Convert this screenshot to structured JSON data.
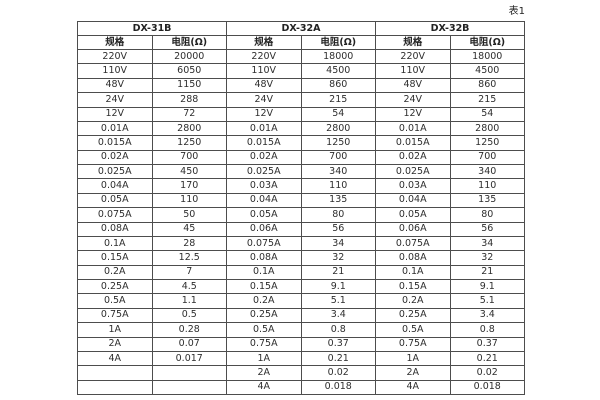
{
  "page": {
    "caption": "表1"
  },
  "table": {
    "groups": [
      {
        "name": "DX-31B"
      },
      {
        "name": "DX-32A"
      },
      {
        "name": "DX-32B"
      }
    ],
    "col_headers": {
      "spec": "规格",
      "resistance": "电阻(Ω)"
    },
    "rows": [
      [
        "220V",
        "20000",
        "220V",
        "18000",
        "220V",
        "18000"
      ],
      [
        "110V",
        "6050",
        "110V",
        "4500",
        "110V",
        "4500"
      ],
      [
        "48V",
        "1150",
        "48V",
        "860",
        "48V",
        "860"
      ],
      [
        "24V",
        "288",
        "24V",
        "215",
        "24V",
        "215"
      ],
      [
        "12V",
        "72",
        "12V",
        "54",
        "12V",
        "54"
      ],
      [
        "0.01A",
        "2800",
        "0.01A",
        "2800",
        "0.01A",
        "2800"
      ],
      [
        "0.015A",
        "1250",
        "0.015A",
        "1250",
        "0.015A",
        "1250"
      ],
      [
        "0.02A",
        "700",
        "0.02A",
        "700",
        "0.02A",
        "700"
      ],
      [
        "0.025A",
        "450",
        "0.025A",
        "340",
        "0.025A",
        "340"
      ],
      [
        "0.04A",
        "170",
        "0.03A",
        "110",
        "0.03A",
        "110"
      ],
      [
        "0.05A",
        "110",
        "0.04A",
        "135",
        "0.04A",
        "135"
      ],
      [
        "0.075A",
        "50",
        "0.05A",
        "80",
        "0.05A",
        "80"
      ],
      [
        "0.08A",
        "45",
        "0.06A",
        "56",
        "0.06A",
        "56"
      ],
      [
        "0.1A",
        "28",
        "0.075A",
        "34",
        "0.075A",
        "34"
      ],
      [
        "0.15A",
        "12.5",
        "0.08A",
        "32",
        "0.08A",
        "32"
      ],
      [
        "0.2A",
        "7",
        "0.1A",
        "21",
        "0.1A",
        "21"
      ],
      [
        "0.25A",
        "4.5",
        "0.15A",
        "9.1",
        "0.15A",
        "9.1"
      ],
      [
        "0.5A",
        "1.1",
        "0.2A",
        "5.1",
        "0.2A",
        "5.1"
      ],
      [
        "0.75A",
        "0.5",
        "0.25A",
        "3.4",
        "0.25A",
        "3.4"
      ],
      [
        "1A",
        "0.28",
        "0.5A",
        "0.8",
        "0.5A",
        "0.8"
      ],
      [
        "2A",
        "0.07",
        "0.75A",
        "0.37",
        "0.75A",
        "0.37"
      ],
      [
        "4A",
        "0.017",
        "1A",
        "0.21",
        "1A",
        "0.21"
      ],
      [
        "",
        "",
        "2A",
        "0.02",
        "2A",
        "0.02"
      ],
      [
        "",
        "",
        "4A",
        "0.018",
        "4A",
        "0.018"
      ]
    ],
    "colors": {
      "border": "#4d4d4d",
      "text": "#2e2e2e",
      "background": "#ffffff"
    }
  }
}
